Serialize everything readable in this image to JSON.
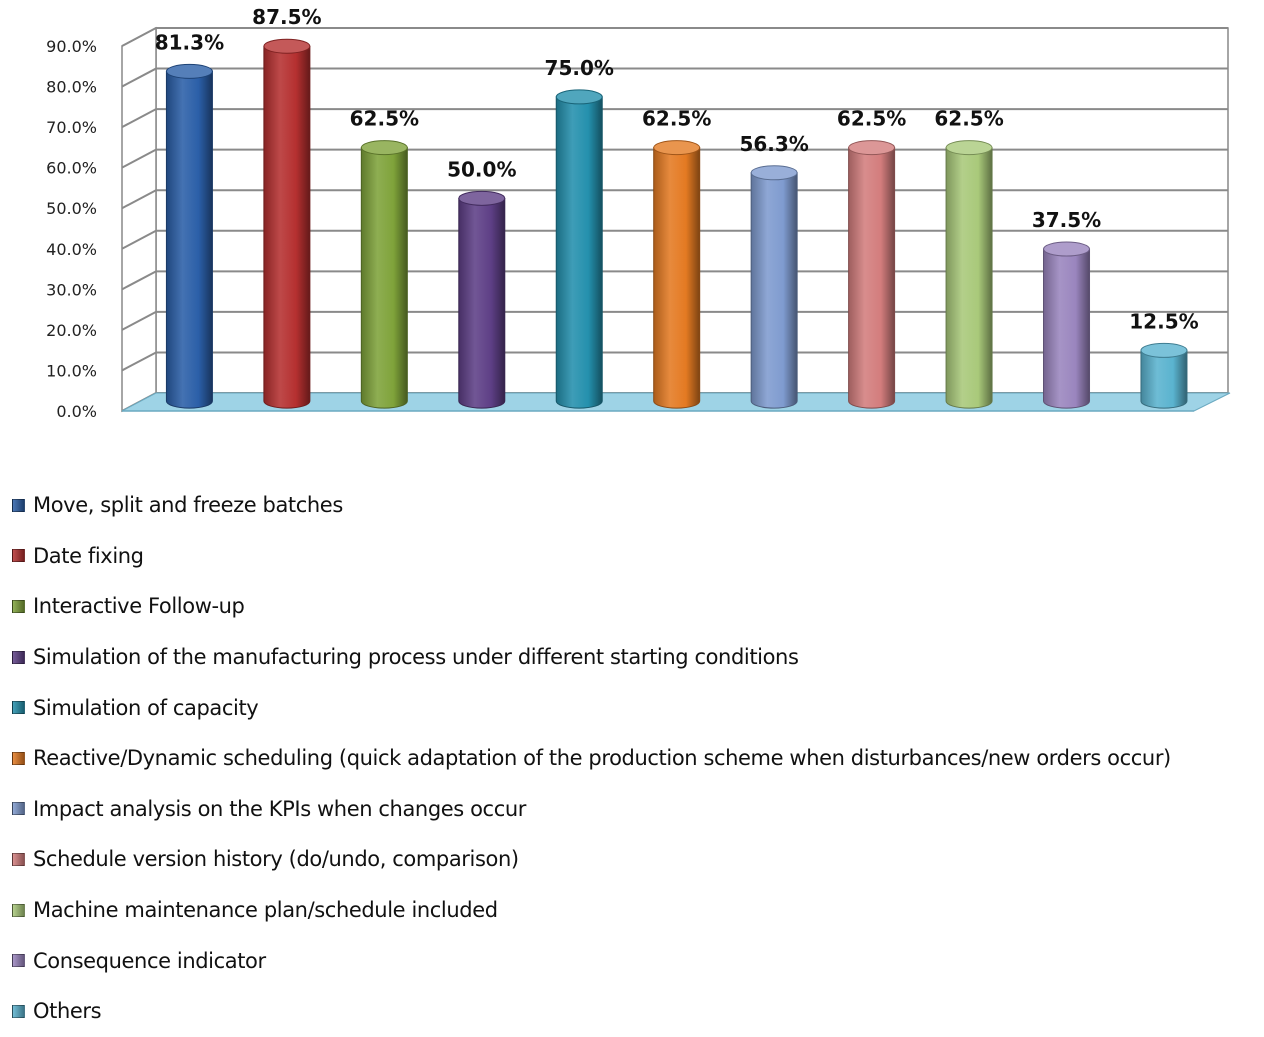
{
  "chart_data": {
    "type": "bar",
    "title": "",
    "xlabel": "",
    "ylabel": "",
    "ylim": [
      0,
      90
    ],
    "y_ticks": [
      "0.0%",
      "10.0%",
      "20.0%",
      "30.0%",
      "40.0%",
      "50.0%",
      "60.0%",
      "70.0%",
      "80.0%",
      "90.0%"
    ],
    "legend_position": "bottom",
    "grid": true,
    "categories": [
      "Move, split and freeze batches",
      "Date fixing",
      "Interactive Follow-up",
      "Simulation of the manufacturing process under different starting conditions",
      "Simulation of capacity",
      "Reactive/Dynamic scheduling (quick adaptation of the production scheme when disturbances/new orders occur)",
      "Impact analysis on the KPIs when changes occur",
      "Schedule version history (do/undo, comparison)",
      "Machine maintenance plan/schedule included",
      "Consequence indicator",
      "Others"
    ],
    "values": [
      81.3,
      87.5,
      62.5,
      50.0,
      75.0,
      62.5,
      56.3,
      62.5,
      62.5,
      37.5,
      12.5
    ],
    "data_labels": [
      "81.3%",
      "87.5%",
      "62.5%",
      "50.0%",
      "75.0%",
      "62.5%",
      "56.3%",
      "62.5%",
      "62.5%",
      "37.5%",
      "12.5%"
    ],
    "colors": [
      "#2B5FA8",
      "#B53030",
      "#7FA33A",
      "#5E3F86",
      "#2490AD",
      "#E47A22",
      "#7F9BCF",
      "#D37D7D",
      "#A9C97A",
      "#9A85BE",
      "#5AB3CF"
    ]
  }
}
